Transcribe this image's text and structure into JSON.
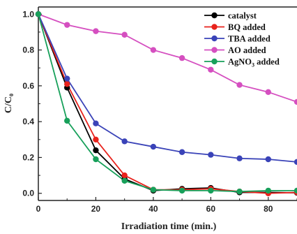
{
  "chart_data": {
    "type": "line",
    "xlabel": "Irradiation time (min.)",
    "ylabel_main": "C/C",
    "ylabel_sub": "0",
    "xlim": [
      0,
      90
    ],
    "ylim": [
      -0.04,
      1.04
    ],
    "x_ticks": [
      0,
      20,
      40,
      60,
      80
    ],
    "x_tick_labels": [
      "0",
      "20",
      "40",
      "60",
      "80"
    ],
    "y_ticks": [
      0.0,
      0.2,
      0.4,
      0.6,
      0.8,
      1.0
    ],
    "y_tick_labels": [
      "0.0",
      "0.2",
      "0.4",
      "0.6",
      "0.8",
      "1.0"
    ],
    "legend_position": "top-right",
    "grid": false,
    "series": [
      {
        "name": "catalyst",
        "name_main": "catalyst",
        "name_sub": "",
        "name_tail": "",
        "color": "#000000",
        "x": [
          0,
          10,
          20,
          30,
          40,
          50,
          60,
          70,
          80,
          90
        ],
        "y": [
          1.0,
          0.59,
          0.24,
          0.08,
          0.015,
          0.025,
          0.03,
          0.005,
          0.005,
          0.003
        ]
      },
      {
        "name": "BQ added",
        "name_main": "BQ added",
        "name_sub": "",
        "name_tail": "",
        "color": "#e8221c",
        "x": [
          0,
          10,
          20,
          30,
          40,
          50,
          60,
          70,
          80,
          90
        ],
        "y": [
          1.0,
          0.61,
          0.3,
          0.1,
          0.02,
          0.02,
          0.025,
          0.01,
          0.0,
          0.005
        ]
      },
      {
        "name": "TBA added",
        "name_main": "TBA added",
        "name_sub": "",
        "name_tail": "",
        "color": "#3a43b8",
        "x": [
          0,
          10,
          20,
          30,
          40,
          50,
          60,
          70,
          80,
          90
        ],
        "y": [
          1.0,
          0.64,
          0.39,
          0.29,
          0.26,
          0.23,
          0.215,
          0.195,
          0.19,
          0.175
        ]
      },
      {
        "name": "AO added",
        "name_main": "AO added",
        "name_sub": "",
        "name_tail": "",
        "color": "#d54fc0",
        "x": [
          0,
          10,
          20,
          30,
          40,
          50,
          60,
          70,
          80,
          90
        ],
        "y": [
          1.0,
          0.94,
          0.905,
          0.885,
          0.8,
          0.755,
          0.69,
          0.605,
          0.565,
          0.51
        ]
      },
      {
        "name": "AgNO3 added",
        "name_main": "AgNO",
        "name_sub": "3",
        "name_tail": " added",
        "color": "#17a05a",
        "x": [
          0,
          10,
          20,
          30,
          40,
          50,
          60,
          70,
          80,
          90
        ],
        "y": [
          1.0,
          0.405,
          0.19,
          0.07,
          0.02,
          0.015,
          0.015,
          0.01,
          0.015,
          0.015
        ]
      }
    ]
  }
}
